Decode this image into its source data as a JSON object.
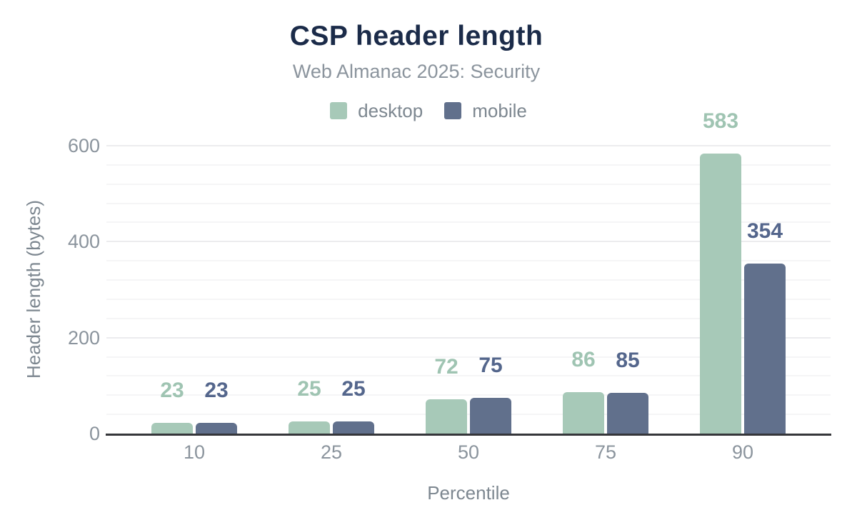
{
  "title": "CSP header length",
  "subtitle": "Web Almanac 2025: Security",
  "legend": {
    "items": [
      {
        "label": "desktop",
        "color": "#a7c9b8"
      },
      {
        "label": "mobile",
        "color": "#61708c"
      }
    ]
  },
  "axes": {
    "x_title": "Percentile",
    "y_title": "Header length (bytes)"
  },
  "chart_data": {
    "type": "bar",
    "categories": [
      "10",
      "25",
      "50",
      "75",
      "90"
    ],
    "series": [
      {
        "name": "desktop",
        "color": "#a7c9b8",
        "label_color": "#9fc4b2",
        "values": [
          23,
          25,
          72,
          86,
          583
        ]
      },
      {
        "name": "mobile",
        "color": "#61708c",
        "label_color": "#54668c",
        "values": [
          23,
          25,
          75,
          85,
          354
        ]
      }
    ],
    "title": "CSP header length",
    "subtitle": "Web Almanac 2025: Security",
    "xlabel": "Percentile",
    "ylabel": "Header length (bytes)",
    "ylim": [
      0,
      600
    ],
    "yticks": [
      0,
      200,
      400,
      600
    ],
    "minor_gridline_step": 40,
    "grid": true,
    "legend_position": "top"
  },
  "colors": {
    "title_text": "#1b2b49",
    "muted_text": "#8b949d",
    "legend_text": "#7d8790",
    "axis_title_text": "#7d8790",
    "axis_line": "#35363a",
    "grid_minor": "#f5f5f6",
    "grid_major": "#ececee",
    "background": "#ffffff"
  }
}
